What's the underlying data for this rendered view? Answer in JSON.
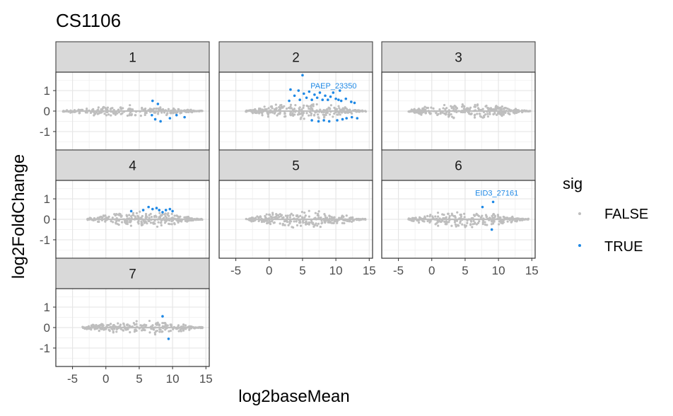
{
  "chart_data": {
    "type": "scatter",
    "title": "CS1106",
    "xlabel": "log2baseMean",
    "ylabel": "log2FoldChange",
    "xlim": [
      -7.5,
      15.5
    ],
    "ylim": [
      -1.9,
      1.9
    ],
    "x_ticks": [
      -5,
      0,
      5,
      10,
      15
    ],
    "y_ticks": [
      -1,
      0,
      1
    ],
    "grid": true,
    "legend": {
      "title": "sig",
      "position": "right",
      "entries": [
        {
          "label": "FALSE",
          "color": "#bebebe"
        },
        {
          "label": "TRUE",
          "color": "#1e88e5"
        }
      ]
    },
    "panels": [
      {
        "strip": "1",
        "x_range": [
          -6.5,
          14.5
        ],
        "max_spread": 0.3,
        "sig_points": [
          [
            7.0,
            0.5
          ],
          [
            7.4,
            -0.4
          ],
          [
            8.2,
            -0.5
          ],
          [
            9.6,
            -0.35
          ],
          [
            10.6,
            -0.2
          ],
          [
            11.8,
            -0.3
          ],
          [
            7.8,
            0.35
          ],
          [
            6.9,
            -0.2
          ]
        ],
        "labels": []
      },
      {
        "strip": "2",
        "x_range": [
          -3.5,
          14.5
        ],
        "max_spread": 0.45,
        "sig_points": [
          [
            5.0,
            1.75
          ],
          [
            3.2,
            1.05
          ],
          [
            3.8,
            0.75
          ],
          [
            4.4,
            1.0
          ],
          [
            4.6,
            0.55
          ],
          [
            5.2,
            0.85
          ],
          [
            5.6,
            0.65
          ],
          [
            6.0,
            0.95
          ],
          [
            6.4,
            0.55
          ],
          [
            6.8,
            0.8
          ],
          [
            7.2,
            0.65
          ],
          [
            7.6,
            0.9
          ],
          [
            8.0,
            0.55
          ],
          [
            8.4,
            0.75
          ],
          [
            8.8,
            0.55
          ],
          [
            9.2,
            0.7
          ],
          [
            9.6,
            0.9
          ],
          [
            10.0,
            0.6
          ],
          [
            10.4,
            0.55
          ],
          [
            10.8,
            0.5
          ],
          [
            11.5,
            0.6
          ],
          [
            12.3,
            0.45
          ],
          [
            12.8,
            0.4
          ],
          [
            10.6,
            1.0
          ],
          [
            3.0,
            0.5
          ],
          [
            7.4,
            -0.5
          ],
          [
            8.2,
            -0.45
          ],
          [
            9.0,
            -0.5
          ],
          [
            10.2,
            -0.45
          ],
          [
            11.0,
            -0.4
          ],
          [
            11.6,
            -0.35
          ],
          [
            12.4,
            -0.3
          ],
          [
            13.2,
            -0.35
          ],
          [
            6.4,
            -0.45
          ]
        ],
        "labels": [
          {
            "text": "PAEP_23350",
            "x": 6.2,
            "y": 1.25
          }
        ]
      },
      {
        "strip": "3",
        "x_range": [
          -3.5,
          14.8
        ],
        "max_spread": 0.4,
        "sig_points": [],
        "labels": []
      },
      {
        "strip": "4",
        "x_range": [
          -2.8,
          14.5
        ],
        "max_spread": 0.42,
        "sig_points": [
          [
            3.8,
            0.4
          ],
          [
            5.6,
            0.45
          ],
          [
            6.4,
            0.6
          ],
          [
            7.0,
            0.5
          ],
          [
            7.6,
            0.55
          ],
          [
            8.0,
            0.45
          ],
          [
            8.5,
            0.35
          ],
          [
            9.0,
            0.45
          ],
          [
            9.6,
            0.5
          ],
          [
            10.0,
            0.4
          ]
        ],
        "labels": []
      },
      {
        "strip": "5",
        "x_range": [
          -3.5,
          14.5
        ],
        "max_spread": 0.45,
        "sig_points": [],
        "labels": []
      },
      {
        "strip": "6",
        "x_range": [
          -3.5,
          14.5
        ],
        "max_spread": 0.45,
        "sig_points": [
          [
            9.2,
            0.85
          ],
          [
            7.6,
            0.6
          ],
          [
            9.0,
            -0.5
          ]
        ],
        "labels": [
          {
            "text": "EID3_27161",
            "x": 6.5,
            "y": 1.3
          }
        ]
      },
      {
        "strip": "7",
        "x_range": [
          -3.5,
          14.5
        ],
        "max_spread": 0.38,
        "sig_points": [
          [
            8.5,
            0.55
          ],
          [
            9.4,
            -0.55
          ]
        ],
        "labels": []
      }
    ]
  }
}
